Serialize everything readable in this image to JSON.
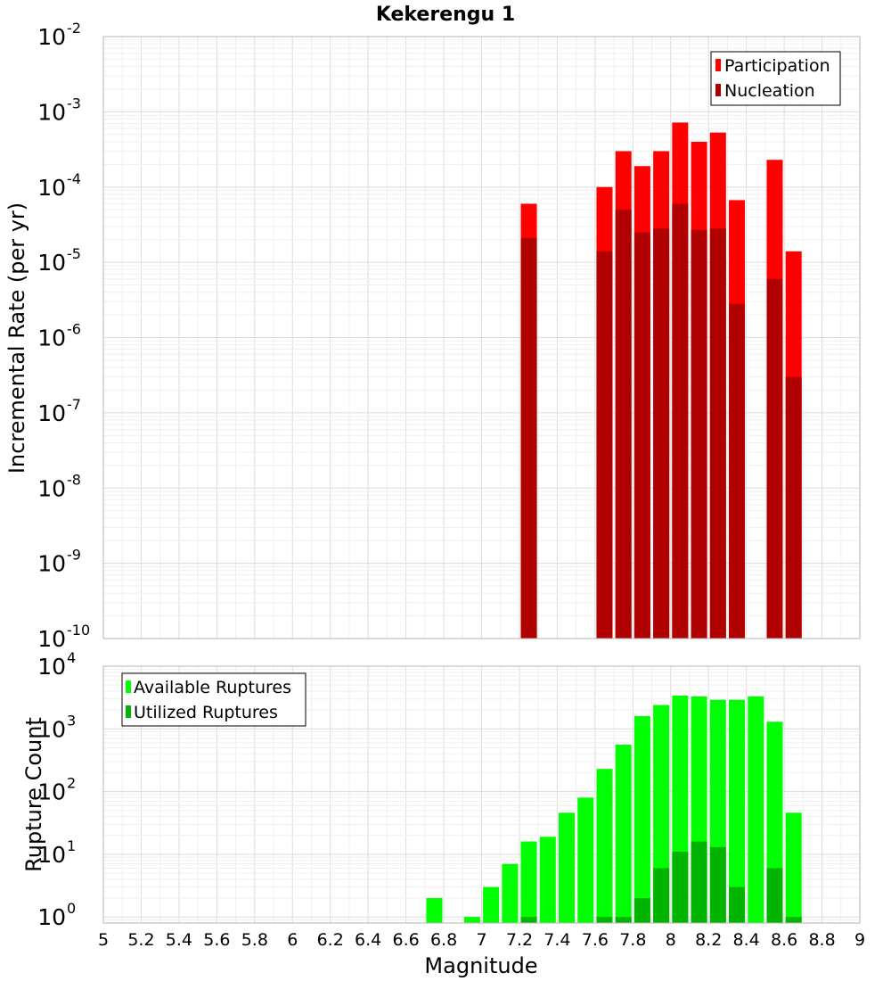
{
  "chart_data": [
    {
      "type": "bar",
      "title": "Kekerengu 1",
      "ylabel": "Incremental Rate (per yr)",
      "xlabel": "",
      "yscale": "log",
      "xlim": [
        5,
        9
      ],
      "ylim": [
        1e-10,
        0.01
      ],
      "grid": true,
      "legend_position": "top-right",
      "x": [
        7.25,
        7.65,
        7.75,
        7.85,
        7.95,
        8.05,
        8.15,
        8.25,
        8.35,
        8.55,
        8.65
      ],
      "series": [
        {
          "name": "Participation",
          "color": "#ff0000",
          "values": [
            6e-05,
            0.0001,
            0.0003,
            0.00019,
            0.0003,
            0.00072,
            0.0004,
            0.00053,
            6.7e-05,
            0.00023,
            1.4e-05
          ]
        },
        {
          "name": "Nucleation",
          "color": "#b00000",
          "values": [
            2.1e-05,
            1.4e-05,
            5e-05,
            2.5e-05,
            2.8e-05,
            6e-05,
            2.7e-05,
            2.8e-05,
            2.8e-06,
            6e-06,
            3e-07
          ]
        }
      ],
      "y_tick_labels": [
        {
          "base": "10",
          "exp": "-10"
        },
        {
          "base": "10",
          "exp": "-9"
        },
        {
          "base": "10",
          "exp": "-8"
        },
        {
          "base": "10",
          "exp": "-7"
        },
        {
          "base": "10",
          "exp": "-6"
        },
        {
          "base": "10",
          "exp": "-5"
        },
        {
          "base": "10",
          "exp": "-4"
        },
        {
          "base": "10",
          "exp": "-3"
        },
        {
          "base": "10",
          "exp": "-2"
        }
      ]
    },
    {
      "type": "bar",
      "title": "",
      "ylabel": "Rupture Count",
      "xlabel": "Magnitude",
      "yscale": "log",
      "xlim": [
        5,
        9
      ],
      "ylim": [
        0.8,
        10000
      ],
      "grid": true,
      "legend_position": "top-left",
      "x": [
        6.75,
        6.95,
        7.05,
        7.15,
        7.25,
        7.35,
        7.45,
        7.55,
        7.65,
        7.75,
        7.85,
        7.95,
        8.05,
        8.15,
        8.25,
        8.35,
        8.45,
        8.55,
        8.65
      ],
      "series": [
        {
          "name": "Available Ruptures",
          "color": "#00ff00",
          "values": [
            2,
            1,
            3,
            7,
            16,
            19,
            46,
            80,
            230,
            560,
            1600,
            2400,
            3400,
            3300,
            2900,
            2900,
            3300,
            1300,
            46
          ]
        },
        {
          "name": "Utilized Ruptures",
          "color": "#00b400",
          "values": [
            null,
            null,
            null,
            null,
            1,
            null,
            null,
            null,
            1,
            1,
            2,
            6,
            11,
            16,
            13,
            3,
            null,
            6,
            1
          ]
        }
      ],
      "y_tick_labels": [
        {
          "base": "10",
          "exp": "0"
        },
        {
          "base": "10",
          "exp": "1"
        },
        {
          "base": "10",
          "exp": "2"
        },
        {
          "base": "10",
          "exp": "3"
        },
        {
          "base": "10",
          "exp": "4"
        }
      ],
      "x_tick_labels": [
        "5",
        "5.2",
        "5.4",
        "5.6",
        "5.8",
        "6",
        "6.2",
        "6.4",
        "6.6",
        "6.8",
        "7",
        "7.2",
        "7.4",
        "7.6",
        "7.8",
        "8",
        "8.2",
        "8.4",
        "8.6",
        "8.8",
        "9"
      ]
    }
  ]
}
